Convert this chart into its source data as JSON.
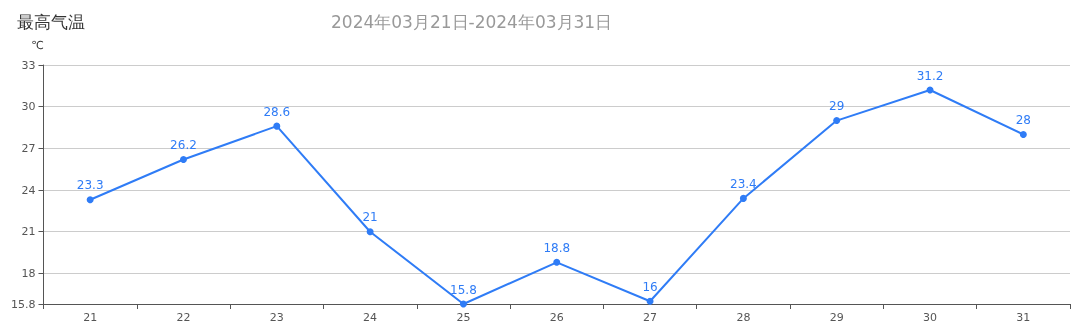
{
  "chart_data": {
    "type": "line",
    "title": "最高气温",
    "subtitle": "2024年03月21日-2024年03月31日",
    "ylabel": "℃",
    "categories": [
      "21",
      "22",
      "23",
      "24",
      "25",
      "26",
      "27",
      "28",
      "29",
      "30",
      "31"
    ],
    "series": [
      {
        "color": "#2f7cf6",
        "values": [
          23.3,
          26.2,
          28.6,
          21,
          15.8,
          18.8,
          16,
          23.4,
          29,
          31.2,
          28
        ]
      }
    ],
    "ylim": [
      15.8,
      33
    ],
    "yticks": [
      15.8,
      18,
      21,
      24,
      27,
      30,
      33
    ],
    "grid": "y",
    "marker": "circle",
    "line_style": "solid",
    "data_labels": true
  }
}
